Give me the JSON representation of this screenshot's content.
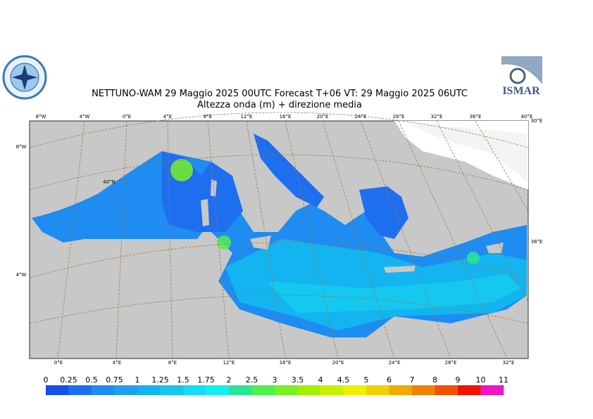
{
  "header": {
    "title": "NETTUNO-WAM  29   Maggio  2025 00UTC Forecast T+06 VT: 29   Maggio  2025 06UTC",
    "subtitle": "Altezza onda (m) + direzione media",
    "logo_right": "ISMAR"
  },
  "map": {
    "top_labels": [
      "8°W",
      "4°W",
      "0°E",
      "4°E",
      "8°E",
      "12°E",
      "16°E",
      "20°E",
      "24°E",
      "28°E",
      "32°E",
      "36°E",
      "40°E"
    ],
    "bottom_labels": [
      "0°E",
      "4°E",
      "8°E",
      "12°E",
      "16°E",
      "20°E",
      "24°E",
      "28°E",
      "32°E"
    ],
    "left_labels": [
      "8°W",
      "40°N",
      "4°W"
    ],
    "right_labels": [
      "30°E",
      "38°E"
    ]
  },
  "legend": {
    "labels": [
      "0",
      "0.25",
      "0.5",
      "0.75",
      "1",
      "1.25",
      "1.5",
      "1.75",
      "2",
      "2.5",
      "3",
      "3.5",
      "4",
      "4.5",
      "5",
      "6",
      "7",
      "8",
      "9",
      "10",
      "11"
    ],
    "colors": [
      "#1450e6",
      "#1e6ef0",
      "#1e8cf0",
      "#1ea0f0",
      "#14b4f0",
      "#14c8f0",
      "#14dcf5",
      "#14f0f0",
      "#28e696",
      "#50f050",
      "#78f028",
      "#a0f000",
      "#c8f000",
      "#f0f000",
      "#f0d200",
      "#f0aa00",
      "#f08200",
      "#f05000",
      "#f01400",
      "#f014c8"
    ]
  }
}
